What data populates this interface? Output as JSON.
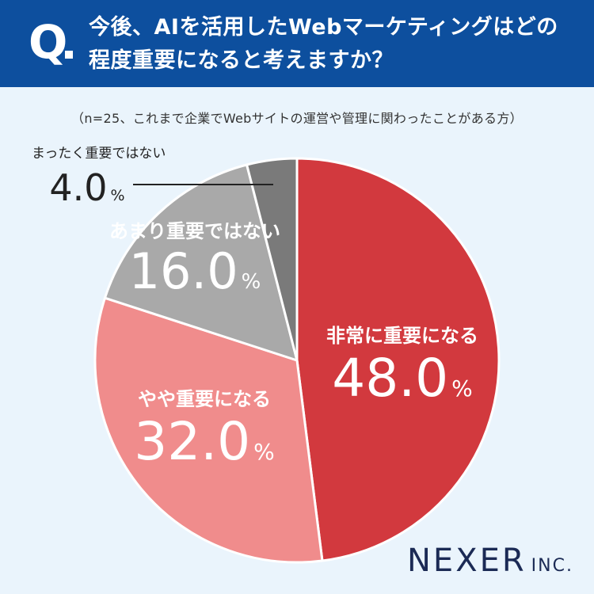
{
  "header": {
    "q_mark": "Q",
    "question": "今後、AIを活用したWebマーケティングはどの程度重要になると考えますか？"
  },
  "note": "（n=25、これまで企業でWebサイトの運営や管理に関わったことがある方）",
  "logo": {
    "name": "NEXER",
    "suffix": "INC."
  },
  "chart_data": {
    "type": "pie",
    "unit": "%",
    "slices": [
      {
        "label": "非常に重要になる",
        "value": 48.0,
        "display": "48.0",
        "color": "#d2393e"
      },
      {
        "label": "やや重要になる",
        "value": 32.0,
        "display": "32.0",
        "color": "#f08c8c"
      },
      {
        "label": "あまり重要ではない",
        "value": 16.0,
        "display": "16.0",
        "color": "#a9a9a9"
      },
      {
        "label": "まったく重要ではない",
        "value": 4.0,
        "display": "4.0",
        "color": "#7a7a7a"
      }
    ]
  }
}
